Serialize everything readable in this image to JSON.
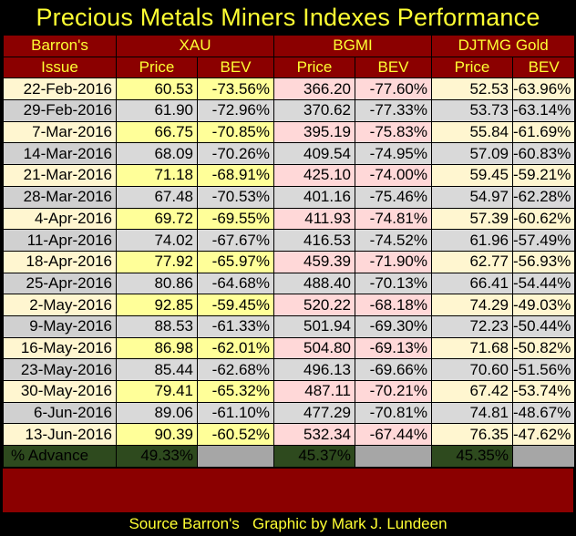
{
  "title": "Precious Metals Miners Indexes Performance",
  "header": {
    "issue_line1": "Barron's",
    "issue_line2": "Issue",
    "groups": [
      "XAU",
      "BGMI",
      "DJTMG Gold"
    ],
    "price_label": "Price",
    "bev_label": "BEV"
  },
  "rows": [
    {
      "date": "22-Feb-2016",
      "xau_price": "60.53",
      "xau_bev": "-73.56%",
      "bgmi_price": "366.20",
      "bgmi_bev": "-77.60%",
      "djtmg_price": "52.53",
      "djtmg_bev": "-63.96%"
    },
    {
      "date": "29-Feb-2016",
      "xau_price": "61.90",
      "xau_bev": "-72.96%",
      "bgmi_price": "370.62",
      "bgmi_bev": "-77.33%",
      "djtmg_price": "53.73",
      "djtmg_bev": "-63.14%"
    },
    {
      "date": "7-Mar-2016",
      "xau_price": "66.75",
      "xau_bev": "-70.85%",
      "bgmi_price": "395.19",
      "bgmi_bev": "-75.83%",
      "djtmg_price": "55.84",
      "djtmg_bev": "-61.69%"
    },
    {
      "date": "14-Mar-2016",
      "xau_price": "68.09",
      "xau_bev": "-70.26%",
      "bgmi_price": "409.54",
      "bgmi_bev": "-74.95%",
      "djtmg_price": "57.09",
      "djtmg_bev": "-60.83%"
    },
    {
      "date": "21-Mar-2016",
      "xau_price": "71.18",
      "xau_bev": "-68.91%",
      "bgmi_price": "425.10",
      "bgmi_bev": "-74.00%",
      "djtmg_price": "59.45",
      "djtmg_bev": "-59.21%"
    },
    {
      "date": "28-Mar-2016",
      "xau_price": "67.48",
      "xau_bev": "-70.53%",
      "bgmi_price": "401.16",
      "bgmi_bev": "-75.46%",
      "djtmg_price": "54.97",
      "djtmg_bev": "-62.28%"
    },
    {
      "date": "4-Apr-2016",
      "xau_price": "69.72",
      "xau_bev": "-69.55%",
      "bgmi_price": "411.93",
      "bgmi_bev": "-74.81%",
      "djtmg_price": "57.39",
      "djtmg_bev": "-60.62%"
    },
    {
      "date": "11-Apr-2016",
      "xau_price": "74.02",
      "xau_bev": "-67.67%",
      "bgmi_price": "416.53",
      "bgmi_bev": "-74.52%",
      "djtmg_price": "61.96",
      "djtmg_bev": "-57.49%"
    },
    {
      "date": "18-Apr-2016",
      "xau_price": "77.92",
      "xau_bev": "-65.97%",
      "bgmi_price": "459.39",
      "bgmi_bev": "-71.90%",
      "djtmg_price": "62.77",
      "djtmg_bev": "-56.93%"
    },
    {
      "date": "25-Apr-2016",
      "xau_price": "80.86",
      "xau_bev": "-64.68%",
      "bgmi_price": "488.40",
      "bgmi_bev": "-70.13%",
      "djtmg_price": "66.41",
      "djtmg_bev": "-54.44%"
    },
    {
      "date": "2-May-2016",
      "xau_price": "92.85",
      "xau_bev": "-59.45%",
      "bgmi_price": "520.22",
      "bgmi_bev": "-68.18%",
      "djtmg_price": "74.29",
      "djtmg_bev": "-49.03%"
    },
    {
      "date": "9-May-2016",
      "xau_price": "88.53",
      "xau_bev": "-61.33%",
      "bgmi_price": "501.94",
      "bgmi_bev": "-69.30%",
      "djtmg_price": "72.23",
      "djtmg_bev": "-50.44%"
    },
    {
      "date": "16-May-2016",
      "xau_price": "86.98",
      "xau_bev": "-62.01%",
      "bgmi_price": "504.80",
      "bgmi_bev": "-69.13%",
      "djtmg_price": "71.68",
      "djtmg_bev": "-50.82%"
    },
    {
      "date": "23-May-2016",
      "xau_price": "85.44",
      "xau_bev": "-62.68%",
      "bgmi_price": "496.13",
      "bgmi_bev": "-69.66%",
      "djtmg_price": "70.60",
      "djtmg_bev": "-51.56%"
    },
    {
      "date": "30-May-2016",
      "xau_price": "79.41",
      "xau_bev": "-65.32%",
      "bgmi_price": "487.11",
      "bgmi_bev": "-70.21%",
      "djtmg_price": "67.42",
      "djtmg_bev": "-53.74%"
    },
    {
      "date": "6-Jun-2016",
      "xau_price": "89.06",
      "xau_bev": "-61.10%",
      "bgmi_price": "477.29",
      "bgmi_bev": "-70.81%",
      "djtmg_price": "74.81",
      "djtmg_bev": "-48.67%"
    },
    {
      "date": "13-Jun-2016",
      "xau_price": "90.39",
      "xau_bev": "-60.52%",
      "bgmi_price": "532.34",
      "bgmi_bev": "-67.44%",
      "djtmg_price": "76.35",
      "djtmg_bev": "-47.62%"
    }
  ],
  "advance": {
    "label": "% Advance",
    "xau": "49.33%",
    "bgmi": "45.37%",
    "djtmg": "45.35%"
  },
  "footer": "Source Barron's   Graphic by Mark J. Lundeen",
  "colors": {
    "background": "#000000",
    "header_red": "#8b0000",
    "title_yellow": "#ffff33",
    "xau_cream": "#ffff99",
    "bgmi_pink": "#ffd8d8",
    "row_gray": "#d9d9d9",
    "advance_green": "#2e4a1e"
  }
}
